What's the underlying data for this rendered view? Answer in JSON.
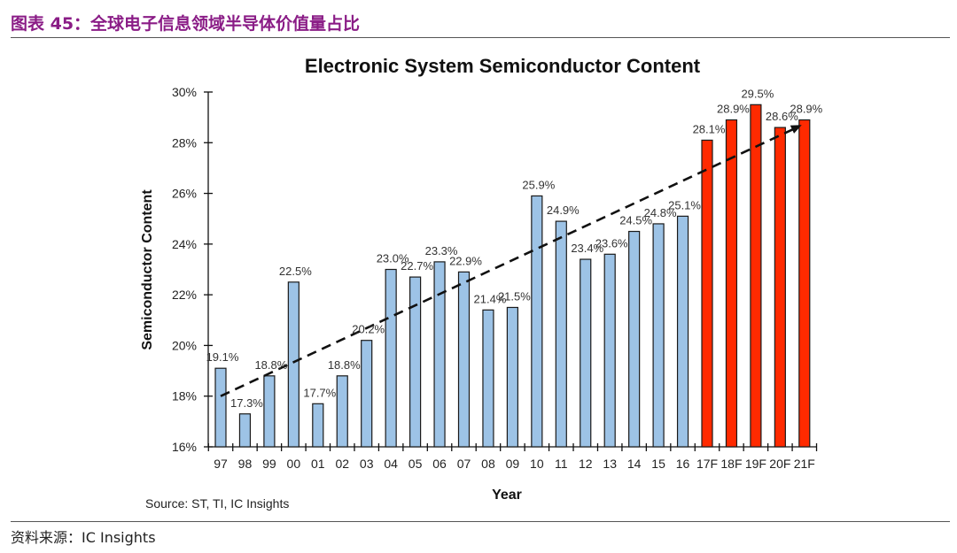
{
  "header": {
    "title": "图表 45：全球电子信息领域半导体价值量占比"
  },
  "footer": {
    "source": "资料来源：IC Insights"
  },
  "chart_data": {
    "type": "bar",
    "title": "Electronic System Semiconductor Content",
    "xlabel": "Year",
    "ylabel": "Semiconductor Content",
    "ylim": [
      16,
      30
    ],
    "yticks": [
      16,
      18,
      20,
      22,
      24,
      26,
      28,
      30
    ],
    "ytick_labels": [
      "16%",
      "18%",
      "20%",
      "22%",
      "24%",
      "26%",
      "28%",
      "30%"
    ],
    "categories": [
      "97",
      "98",
      "99",
      "00",
      "01",
      "02",
      "03",
      "04",
      "05",
      "06",
      "07",
      "08",
      "09",
      "10",
      "11",
      "12",
      "13",
      "14",
      "15",
      "16",
      "17F",
      "18F",
      "19F",
      "20F",
      "21F"
    ],
    "values": [
      19.1,
      17.3,
      18.8,
      22.5,
      17.7,
      18.8,
      20.2,
      23.0,
      22.7,
      23.3,
      22.9,
      21.4,
      21.5,
      25.9,
      24.9,
      23.4,
      23.6,
      24.5,
      24.8,
      25.1,
      28.1,
      28.9,
      29.5,
      28.6,
      28.9
    ],
    "labels": [
      "19.1%",
      "17.3%",
      "18.8%",
      "22.5%",
      "17.7%",
      "18.8%",
      "20.2%",
      "23.0%",
      "22.7%",
      "23.3%",
      "22.9%",
      "21.4%",
      "21.5%",
      "25.9%",
      "24.9%",
      "23.4%",
      "23.6%",
      "24.5%",
      "24.8%",
      "25.1%",
      "28.1%",
      "28.9%",
      "29.5%",
      "28.6%",
      "28.9%"
    ],
    "forecast_from_index": 20,
    "colors": {
      "actual": "#9dc3e6",
      "forecast": "#ff2a00",
      "outline": "#1a1a1a",
      "trend": "#111111"
    },
    "trendline": {
      "start": [
        0,
        18.0
      ],
      "end": [
        24,
        28.7
      ],
      "style": "dashed-arrow"
    },
    "source_note": "Source: ST, TI, IC Insights"
  }
}
